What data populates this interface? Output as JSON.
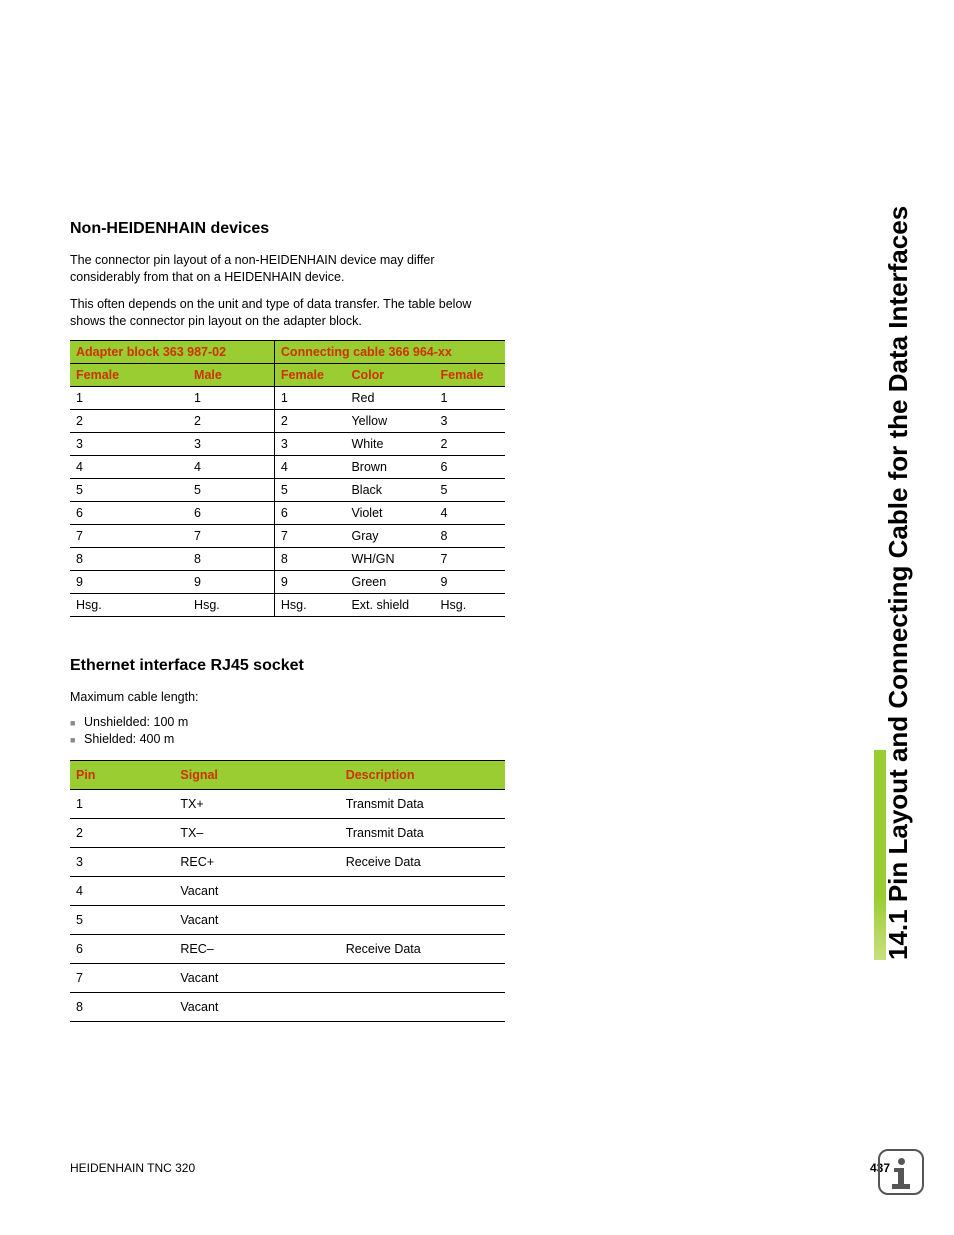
{
  "side_title": "14.1 Pin Layout and Connecting Cable for the Data Interfaces",
  "section1": {
    "heading": "Non-HEIDENHAIN devices",
    "para1": "The connector pin layout of a non-HEIDENHAIN device may differ considerably from that on a HEIDENHAIN device.",
    "para2": "This often depends on the unit and type of data transfer. The table below shows the connector pin layout on the adapter block."
  },
  "table1": {
    "group_headers": [
      "Adapter block 363 987-02",
      "Connecting cable 366 964-xx"
    ],
    "sub_headers": [
      "Female",
      "Male",
      "Female",
      "Color",
      "Female"
    ],
    "rows": [
      [
        "1",
        "1",
        "1",
        "Red",
        "1"
      ],
      [
        "2",
        "2",
        "2",
        "Yellow",
        "3"
      ],
      [
        "3",
        "3",
        "3",
        "White",
        "2"
      ],
      [
        "4",
        "4",
        "4",
        "Brown",
        "6"
      ],
      [
        "5",
        "5",
        "5",
        "Black",
        "5"
      ],
      [
        "6",
        "6",
        "6",
        "Violet",
        "4"
      ],
      [
        "7",
        "7",
        "7",
        "Gray",
        "8"
      ],
      [
        "8",
        "8",
        "8",
        "WH/GN",
        "7"
      ],
      [
        "9",
        "9",
        "9",
        "Green",
        "9"
      ],
      [
        "Hsg.",
        "Hsg.",
        "Hsg.",
        "Ext. shield",
        "Hsg."
      ]
    ],
    "header_bg": "#9acd32",
    "header_text_color": "#cc3300"
  },
  "section2": {
    "heading": "Ethernet interface RJ45 socket",
    "label": "Maximum cable length:",
    "bullets": [
      "Unshielded: 100 m",
      "Shielded: 400 m"
    ]
  },
  "table2": {
    "headers": [
      "Pin",
      "Signal",
      "Description"
    ],
    "rows": [
      [
        "1",
        "TX+",
        "Transmit Data"
      ],
      [
        "2",
        "TX–",
        "Transmit Data"
      ],
      [
        "3",
        "REC+",
        "Receive Data"
      ],
      [
        "4",
        "Vacant",
        ""
      ],
      [
        "5",
        "Vacant",
        ""
      ],
      [
        "6",
        "REC–",
        "Receive Data"
      ],
      [
        "7",
        "Vacant",
        ""
      ],
      [
        "8",
        "Vacant",
        ""
      ]
    ],
    "header_bg": "#9acd32",
    "header_text_color": "#cc3300"
  },
  "footer": {
    "left": "HEIDENHAIN TNC 320",
    "page": "437"
  },
  "colors": {
    "accent_green": "#9acd32",
    "header_red": "#cc3300",
    "text": "#000000",
    "bg": "#ffffff"
  }
}
